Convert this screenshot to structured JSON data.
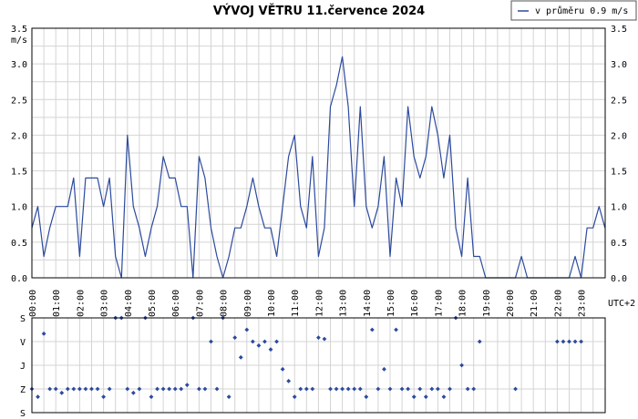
{
  "chart_data": [
    {
      "type": "line",
      "title": "VÝVOJ VĚTRU  11.července 2024",
      "legend": "v průměru 0.9 m/s",
      "legend_position": "top-right",
      "series_color": "#2c4a9e",
      "ylabel": "m/s",
      "ylim": [
        0,
        3.5
      ],
      "y_ticks": [
        "0.0",
        "0.5",
        "1.0",
        "1.5",
        "2.0",
        "2.5",
        "3.0",
        "3.5"
      ],
      "x_label_right": "UTC+2",
      "x_ticks": [
        "00:00",
        "01:00",
        "02:00",
        "03:00",
        "04:00",
        "05:00",
        "06:00",
        "07:00",
        "08:00",
        "09:00",
        "10:00",
        "11:00",
        "12:00",
        "13:00",
        "14:00",
        "15:00",
        "16:00",
        "17:00",
        "18:00",
        "19:00",
        "20:00",
        "21:00",
        "22:00",
        "23:00"
      ],
      "x_unit": "hours",
      "grid": true,
      "x": [
        0.0,
        0.25,
        0.5,
        0.75,
        1.0,
        1.25,
        1.5,
        1.75,
        2.0,
        2.25,
        2.5,
        2.75,
        3.0,
        3.25,
        3.5,
        3.75,
        4.0,
        4.25,
        4.5,
        4.75,
        5.0,
        5.25,
        5.5,
        5.75,
        6.0,
        6.25,
        6.5,
        6.75,
        7.0,
        7.25,
        7.5,
        7.75,
        8.0,
        8.25,
        8.5,
        8.75,
        9.0,
        9.25,
        9.5,
        9.75,
        10.0,
        10.25,
        10.5,
        10.75,
        11.0,
        11.25,
        11.5,
        11.75,
        12.0,
        12.25,
        12.5,
        12.75,
        13.0,
        13.25,
        13.5,
        13.75,
        14.0,
        14.25,
        14.5,
        14.75,
        15.0,
        15.25,
        15.5,
        15.75,
        16.0,
        16.25,
        16.5,
        16.75,
        17.0,
        17.25,
        17.5,
        17.75,
        18.0,
        18.25,
        18.5,
        18.75,
        19.0,
        19.25,
        19.5,
        19.75,
        20.0,
        20.25,
        20.5,
        20.75,
        21.0,
        21.25,
        21.5,
        21.75,
        22.0,
        22.25,
        22.5,
        22.75,
        23.0,
        23.25,
        23.5,
        23.75,
        24.0
      ],
      "values": [
        0.7,
        1.0,
        0.3,
        0.7,
        1.0,
        1.0,
        1.0,
        1.4,
        0.3,
        1.4,
        1.4,
        1.4,
        1.0,
        1.4,
        0.3,
        0.0,
        2.0,
        1.0,
        0.7,
        0.3,
        0.7,
        1.0,
        1.7,
        1.4,
        1.4,
        1.0,
        1.0,
        0.0,
        1.7,
        1.4,
        0.7,
        0.3,
        0.0,
        0.3,
        0.7,
        0.7,
        1.0,
        1.4,
        1.0,
        0.7,
        0.7,
        0.3,
        1.0,
        1.7,
        2.0,
        1.0,
        0.7,
        1.7,
        0.3,
        0.7,
        2.4,
        2.7,
        3.1,
        2.4,
        1.0,
        2.4,
        1.0,
        0.7,
        1.0,
        1.7,
        0.3,
        1.4,
        1.0,
        2.4,
        1.7,
        1.4,
        1.7,
        2.4,
        2.0,
        1.4,
        2.0,
        0.7,
        0.3,
        1.4,
        0.3,
        0.3,
        0.0,
        0.0,
        0.0,
        0.0,
        0.0,
        0.0,
        0.3,
        0.0,
        0.0,
        0.0,
        0.0,
        0.0,
        0.0,
        0.0,
        0.0,
        0.3,
        0.0,
        0.7,
        0.7,
        1.0,
        0.7
      ]
    },
    {
      "type": "scatter",
      "y_categories": [
        "S",
        "V",
        "J",
        "Z",
        "S"
      ],
      "series_color": "#2c4a9e",
      "x_unit": "hours",
      "xlim": [
        0,
        24
      ],
      "ylim_degrees": [
        0,
        360
      ],
      "x": [
        0.0,
        0.25,
        0.5,
        0.75,
        1.0,
        1.25,
        1.5,
        1.75,
        2.0,
        2.25,
        2.5,
        2.75,
        3.0,
        3.25,
        3.5,
        3.75,
        4.0,
        4.25,
        4.5,
        4.75,
        5.0,
        5.25,
        5.5,
        5.75,
        6.0,
        6.25,
        6.5,
        6.75,
        7.0,
        7.25,
        7.5,
        7.75,
        8.0,
        8.25,
        8.5,
        8.75,
        9.0,
        9.25,
        9.5,
        9.75,
        10.0,
        10.25,
        10.5,
        10.75,
        11.0,
        11.25,
        11.5,
        11.75,
        12.0,
        12.25,
        12.5,
        12.75,
        13.0,
        13.25,
        13.5,
        13.75,
        14.0,
        14.25,
        14.5,
        14.75,
        15.0,
        15.25,
        15.5,
        15.75,
        16.0,
        16.25,
        16.5,
        16.75,
        17.0,
        17.25,
        17.5,
        17.75,
        18.0,
        18.25,
        18.5,
        18.75,
        20.25,
        22.0,
        22.25,
        22.5,
        22.75,
        23.0
      ],
      "values": [
        270,
        300,
        60,
        270,
        270,
        285,
        270,
        270,
        270,
        270,
        270,
        270,
        300,
        270,
        0,
        0,
        270,
        285,
        270,
        0,
        300,
        270,
        270,
        270,
        270,
        270,
        255,
        0,
        270,
        270,
        90,
        270,
        0,
        300,
        75,
        150,
        45,
        90,
        105,
        90,
        120,
        90,
        195,
        240,
        300,
        270,
        270,
        270,
        75,
        80,
        270,
        270,
        270,
        270,
        270,
        270,
        300,
        45,
        270,
        195,
        270,
        45,
        270,
        270,
        300,
        270,
        300,
        270,
        270,
        300,
        270,
        0,
        180,
        270,
        270,
        90,
        270,
        90,
        90,
        90,
        90,
        90
      ]
    }
  ]
}
